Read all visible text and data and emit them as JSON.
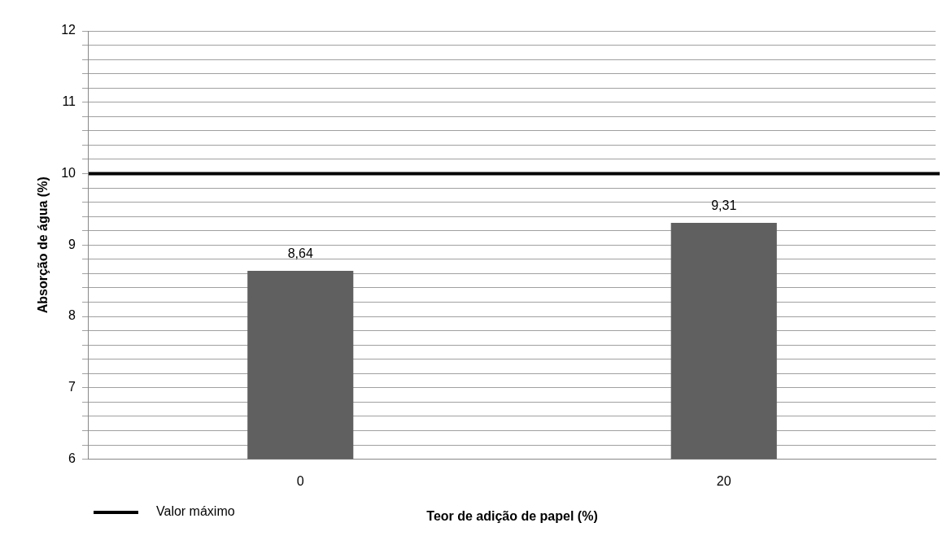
{
  "chart_data": {
    "type": "bar",
    "xlabel": "Teor de adição de papel (%)",
    "ylabel": "Absorção de água (%)",
    "categories": [
      "0",
      "20"
    ],
    "values": [
      8.64,
      9.31
    ],
    "value_labels": [
      "8,64",
      "9,31"
    ],
    "color": "#606060",
    "ylim": [
      6,
      12
    ],
    "yticks": [
      6,
      {
        "value": 6.2,
        "label": null
      },
      {
        "value": 6.4,
        "label": null
      },
      {
        "value": 6.6,
        "label": null
      },
      {
        "value": 6.8,
        "label": null
      },
      7,
      {
        "value": 7.2,
        "label": null
      },
      {
        "value": 7.4,
        "label": null
      },
      {
        "value": 7.6,
        "label": null
      },
      {
        "value": 7.8,
        "label": null
      },
      8,
      {
        "value": 8.2,
        "label": null
      },
      {
        "value": 8.4,
        "label": null
      },
      {
        "value": 8.6,
        "label": null
      },
      {
        "value": 8.8,
        "label": null
      },
      9,
      {
        "value": 9.2,
        "label": null
      },
      {
        "value": 9.4,
        "label": null
      },
      {
        "value": 9.6,
        "label": null
      },
      {
        "value": 9.8,
        "label": null
      },
      10,
      {
        "value": 10.2,
        "label": null
      },
      {
        "value": 10.4,
        "label": null
      },
      {
        "value": 10.6,
        "label": null
      },
      {
        "value": 10.8,
        "label": null
      },
      11,
      {
        "value": 11.2,
        "label": null
      },
      {
        "value": 11.4,
        "label": null
      },
      {
        "value": 11.6,
        "label": null
      },
      {
        "value": 11.8,
        "label": null
      },
      12
    ],
    "grid": "y",
    "ref_lines": [
      {
        "axis": "y",
        "value": 10,
        "label": "Valor máximo",
        "color": "#000000",
        "line_style": "solid"
      }
    ],
    "legend": "bottom left"
  }
}
